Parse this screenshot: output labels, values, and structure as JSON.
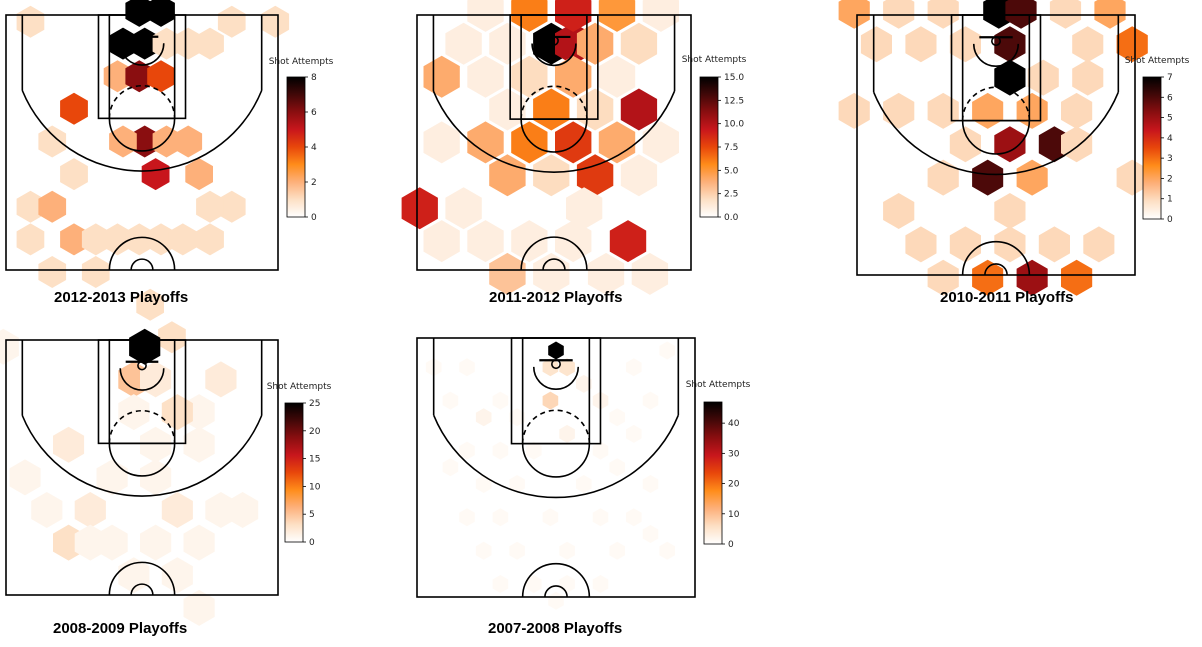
{
  "colorbar_title": "Shot Attempts",
  "colormap": [
    "#ffffff",
    "#fde0c5",
    "#fdb07a",
    "#ff8c1a",
    "#e8470b",
    "#c8161c",
    "#8a0e10",
    "#420808",
    "#000000"
  ],
  "chart_data": [
    {
      "type": "heatmap",
      "caption": "2012-2013 Playoffs",
      "colorbar_label": "Shot Attempts",
      "vmin": 0,
      "vmax": 8,
      "ticks": [
        "0",
        "2",
        "4",
        "6",
        "8"
      ],
      "bins": [
        {
          "x": -205,
          "y": 410,
          "v": 1
        },
        {
          "x": -5,
          "y": 430,
          "v": 8
        },
        {
          "x": 35,
          "y": 430,
          "v": 8
        },
        {
          "x": -35,
          "y": 370,
          "v": 8
        },
        {
          "x": 5,
          "y": 370,
          "v": 8
        },
        {
          "x": 45,
          "y": 370,
          "v": 1
        },
        {
          "x": 85,
          "y": 370,
          "v": 1
        },
        {
          "x": 125,
          "y": 370,
          "v": 1
        },
        {
          "x": 245,
          "y": 410,
          "v": 1
        },
        {
          "x": 165,
          "y": 410,
          "v": 1
        },
        {
          "x": -45,
          "y": 310,
          "v": 2
        },
        {
          "x": -5,
          "y": 310,
          "v": 6
        },
        {
          "x": 35,
          "y": 310,
          "v": 4
        },
        {
          "x": -125,
          "y": 250,
          "v": 4
        },
        {
          "x": 5,
          "y": 190,
          "v": 6
        },
        {
          "x": -35,
          "y": 190,
          "v": 2
        },
        {
          "x": 45,
          "y": 190,
          "v": 2
        },
        {
          "x": 85,
          "y": 190,
          "v": 2
        },
        {
          "x": 25,
          "y": 130,
          "v": 5
        },
        {
          "x": 105,
          "y": 130,
          "v": 2
        },
        {
          "x": -165,
          "y": 190,
          "v": 1
        },
        {
          "x": -125,
          "y": 130,
          "v": 1
        },
        {
          "x": -205,
          "y": 70,
          "v": 1
        },
        {
          "x": -165,
          "y": 70,
          "v": 2
        },
        {
          "x": -125,
          "y": 10,
          "v": 2
        },
        {
          "x": -85,
          "y": 10,
          "v": 1
        },
        {
          "x": -45,
          "y": 10,
          "v": 1
        },
        {
          "x": -5,
          "y": 10,
          "v": 1
        },
        {
          "x": 35,
          "y": 10,
          "v": 1
        },
        {
          "x": 75,
          "y": 10,
          "v": 1
        },
        {
          "x": 165,
          "y": 70,
          "v": 1
        },
        {
          "x": 125,
          "y": 70,
          "v": 1
        },
        {
          "x": -165,
          "y": -50,
          "v": 1
        },
        {
          "x": -85,
          "y": -50,
          "v": 1
        },
        {
          "x": 15,
          "y": -110,
          "v": 1
        },
        {
          "x": 55,
          "y": -170,
          "v": 1
        },
        {
          "x": -205,
          "y": 10,
          "v": 1
        },
        {
          "x": 125,
          "y": 10,
          "v": 1
        }
      ]
    },
    {
      "type": "heatmap",
      "caption": "2011-2012 Playoffs",
      "colorbar_label": "Shot Attempts",
      "vmin": 0,
      "vmax": 15,
      "ticks": [
        "0.0",
        "2.5",
        "5.0",
        "7.5",
        "10.0",
        "12.5",
        "15.0"
      ],
      "bins": [
        {
          "x": -5,
          "y": 370,
          "v": 15
        },
        {
          "x": 35,
          "y": 370,
          "v": 10
        },
        {
          "x": -45,
          "y": 430,
          "v": 6
        },
        {
          "x": 35,
          "y": 430,
          "v": 9
        },
        {
          "x": 115,
          "y": 430,
          "v": 5
        },
        {
          "x": -125,
          "y": 430,
          "v": 1
        },
        {
          "x": 75,
          "y": 370,
          "v": 4
        },
        {
          "x": 155,
          "y": 370,
          "v": 2
        },
        {
          "x": 195,
          "y": 430,
          "v": 1
        },
        {
          "x": -165,
          "y": 370,
          "v": 1
        },
        {
          "x": -85,
          "y": 370,
          "v": 1
        },
        {
          "x": -205,
          "y": 310,
          "v": 4
        },
        {
          "x": -125,
          "y": 310,
          "v": 1
        },
        {
          "x": -45,
          "y": 310,
          "v": 2
        },
        {
          "x": 35,
          "y": 310,
          "v": 4
        },
        {
          "x": 115,
          "y": 310,
          "v": 1
        },
        {
          "x": 155,
          "y": 250,
          "v": 10
        },
        {
          "x": -85,
          "y": 250,
          "v": 1
        },
        {
          "x": -5,
          "y": 250,
          "v": 6
        },
        {
          "x": 75,
          "y": 250,
          "v": 2
        },
        {
          "x": -45,
          "y": 190,
          "v": 6
        },
        {
          "x": 35,
          "y": 190,
          "v": 8
        },
        {
          "x": 115,
          "y": 190,
          "v": 4
        },
        {
          "x": -125,
          "y": 190,
          "v": 4
        },
        {
          "x": -205,
          "y": 190,
          "v": 1
        },
        {
          "x": -85,
          "y": 130,
          "v": 4
        },
        {
          "x": -5,
          "y": 130,
          "v": 2
        },
        {
          "x": 75,
          "y": 130,
          "v": 8
        },
        {
          "x": 195,
          "y": 190,
          "v": 1
        },
        {
          "x": -245,
          "y": 70,
          "v": 9
        },
        {
          "x": -165,
          "y": 70,
          "v": 1
        },
        {
          "x": 155,
          "y": 130,
          "v": 1
        },
        {
          "x": 135,
          "y": 10,
          "v": 9
        },
        {
          "x": -125,
          "y": 10,
          "v": 1
        },
        {
          "x": -45,
          "y": 10,
          "v": 1
        },
        {
          "x": 35,
          "y": 10,
          "v": 1
        },
        {
          "x": -85,
          "y": -50,
          "v": 3
        },
        {
          "x": -5,
          "y": -50,
          "v": 1
        },
        {
          "x": 175,
          "y": -50,
          "v": 1
        },
        {
          "x": 95,
          "y": -50,
          "v": 1
        },
        {
          "x": -205,
          "y": 10,
          "v": 1
        },
        {
          "x": 55,
          "y": 70,
          "v": 1
        }
      ]
    },
    {
      "type": "heatmap",
      "caption": "2010-2011 Playoffs",
      "colorbar_label": "Shot Attempts",
      "vmin": 0,
      "vmax": 7,
      "ticks": [
        "0",
        "1",
        "2",
        "3",
        "4",
        "5",
        "6",
        "7"
      ],
      "bins": [
        {
          "x": 5,
          "y": 430,
          "v": 7
        },
        {
          "x": 45,
          "y": 430,
          "v": 6
        },
        {
          "x": 25,
          "y": 370,
          "v": 6
        },
        {
          "x": 25,
          "y": 310,
          "v": 7
        },
        {
          "x": -255,
          "y": 430,
          "v": 2
        },
        {
          "x": -175,
          "y": 430,
          "v": 1
        },
        {
          "x": -95,
          "y": 430,
          "v": 1
        },
        {
          "x": 125,
          "y": 430,
          "v": 1
        },
        {
          "x": 205,
          "y": 430,
          "v": 2
        },
        {
          "x": 245,
          "y": 370,
          "v": 3
        },
        {
          "x": 165,
          "y": 370,
          "v": 1
        },
        {
          "x": -135,
          "y": 370,
          "v": 1
        },
        {
          "x": -215,
          "y": 370,
          "v": 1
        },
        {
          "x": -55,
          "y": 370,
          "v": 1
        },
        {
          "x": 85,
          "y": 310,
          "v": 1
        },
        {
          "x": 165,
          "y": 310,
          "v": 1
        },
        {
          "x": -175,
          "y": 250,
          "v": 1
        },
        {
          "x": -95,
          "y": 250,
          "v": 1
        },
        {
          "x": -15,
          "y": 250,
          "v": 2
        },
        {
          "x": 65,
          "y": 250,
          "v": 2
        },
        {
          "x": 145,
          "y": 250,
          "v": 1
        },
        {
          "x": -255,
          "y": 250,
          "v": 1
        },
        {
          "x": -55,
          "y": 190,
          "v": 1
        },
        {
          "x": 25,
          "y": 190,
          "v": 5
        },
        {
          "x": 105,
          "y": 190,
          "v": 6
        },
        {
          "x": -15,
          "y": 130,
          "v": 6
        },
        {
          "x": 65,
          "y": 130,
          "v": 2
        },
        {
          "x": 145,
          "y": 190,
          "v": 1
        },
        {
          "x": 245,
          "y": 130,
          "v": 1
        },
        {
          "x": -95,
          "y": 130,
          "v": 1
        },
        {
          "x": -175,
          "y": 70,
          "v": 1
        },
        {
          "x": 25,
          "y": 70,
          "v": 1
        },
        {
          "x": -135,
          "y": 10,
          "v": 1
        },
        {
          "x": 185,
          "y": 10,
          "v": 1
        },
        {
          "x": 105,
          "y": 10,
          "v": 1
        },
        {
          "x": -55,
          "y": 10,
          "v": 1
        },
        {
          "x": -95,
          "y": -50,
          "v": 1
        },
        {
          "x": -15,
          "y": -50,
          "v": 3
        },
        {
          "x": 65,
          "y": -50,
          "v": 5
        },
        {
          "x": 145,
          "y": -50,
          "v": 3
        },
        {
          "x": 25,
          "y": 10,
          "v": 1
        }
      ]
    },
    {
      "type": "heatmap",
      "caption": "2008-2009 Playoffs",
      "colorbar_label": "Shot Attempts",
      "vmin": 0,
      "vmax": 25,
      "ticks": [
        "0",
        "5",
        "10",
        "15",
        "20",
        "25"
      ],
      "bins": [
        {
          "x": 5,
          "y": 410,
          "v": 25
        },
        {
          "x": -15,
          "y": 350,
          "v": 5
        },
        {
          "x": 25,
          "y": 350,
          "v": 2
        },
        {
          "x": -255,
          "y": 410,
          "v": 1
        },
        {
          "x": 145,
          "y": 350,
          "v": 2
        },
        {
          "x": 105,
          "y": 290,
          "v": 1
        },
        {
          "x": 65,
          "y": 290,
          "v": 3
        },
        {
          "x": -15,
          "y": 290,
          "v": 1
        },
        {
          "x": 25,
          "y": 230,
          "v": 1
        },
        {
          "x": 105,
          "y": 230,
          "v": 1
        },
        {
          "x": -135,
          "y": 230,
          "v": 2
        },
        {
          "x": -55,
          "y": 170,
          "v": 1
        },
        {
          "x": 25,
          "y": 170,
          "v": 1
        },
        {
          "x": -215,
          "y": 170,
          "v": 1
        },
        {
          "x": -175,
          "y": 110,
          "v": 1
        },
        {
          "x": -95,
          "y": 110,
          "v": 2
        },
        {
          "x": 65,
          "y": 110,
          "v": 2
        },
        {
          "x": 145,
          "y": 110,
          "v": 1
        },
        {
          "x": -135,
          "y": 50,
          "v": 3
        },
        {
          "x": -55,
          "y": 50,
          "v": 1
        },
        {
          "x": 25,
          "y": 50,
          "v": 1
        },
        {
          "x": 105,
          "y": 50,
          "v": 1
        },
        {
          "x": 185,
          "y": 110,
          "v": 1
        },
        {
          "x": -15,
          "y": -10,
          "v": 1
        },
        {
          "x": 105,
          "y": -70,
          "v": 1
        },
        {
          "x": 65,
          "y": -10,
          "v": 1
        },
        {
          "x": -95,
          "y": 50,
          "v": 1
        }
      ]
    },
    {
      "type": "heatmap",
      "caption": "2007-2008 Playoffs",
      "colorbar_label": "Shot Attempts",
      "vmin": 0,
      "vmax": 47,
      "ticks": [
        "0",
        "10",
        "20",
        "30",
        "40"
      ],
      "bins": [
        {
          "x": 0,
          "y": 400,
          "v": 47
        },
        {
          "x": -10,
          "y": 370,
          "v": 5
        },
        {
          "x": 20,
          "y": 370,
          "v": 5
        },
        {
          "x": 50,
          "y": 340,
          "v": 2
        },
        {
          "x": -10,
          "y": 310,
          "v": 7
        },
        {
          "x": 80,
          "y": 310,
          "v": 2
        },
        {
          "x": -100,
          "y": 310,
          "v": 1
        },
        {
          "x": -160,
          "y": 370,
          "v": 1
        },
        {
          "x": -220,
          "y": 370,
          "v": 1
        },
        {
          "x": -190,
          "y": 310,
          "v": 1
        },
        {
          "x": 140,
          "y": 370,
          "v": 1
        },
        {
          "x": 200,
          "y": 400,
          "v": 1
        },
        {
          "x": -130,
          "y": 280,
          "v": 2
        },
        {
          "x": -70,
          "y": 280,
          "v": 1
        },
        {
          "x": 20,
          "y": 250,
          "v": 2
        },
        {
          "x": 110,
          "y": 280,
          "v": 1
        },
        {
          "x": 170,
          "y": 310,
          "v": 1
        },
        {
          "x": -160,
          "y": 220,
          "v": 1
        },
        {
          "x": -100,
          "y": 220,
          "v": 1
        },
        {
          "x": -40,
          "y": 220,
          "v": 1
        },
        {
          "x": 80,
          "y": 220,
          "v": 1
        },
        {
          "x": 140,
          "y": 250,
          "v": 1
        },
        {
          "x": -190,
          "y": 190,
          "v": 1
        },
        {
          "x": -130,
          "y": 160,
          "v": 1
        },
        {
          "x": -70,
          "y": 160,
          "v": 1
        },
        {
          "x": 50,
          "y": 160,
          "v": 1
        },
        {
          "x": 110,
          "y": 190,
          "v": 1
        },
        {
          "x": 170,
          "y": 160,
          "v": 1
        },
        {
          "x": -160,
          "y": 100,
          "v": 1
        },
        {
          "x": -100,
          "y": 100,
          "v": 1
        },
        {
          "x": -10,
          "y": 100,
          "v": 1
        },
        {
          "x": 80,
          "y": 100,
          "v": 1
        },
        {
          "x": 140,
          "y": 100,
          "v": 1
        },
        {
          "x": -130,
          "y": 40,
          "v": 1
        },
        {
          "x": -70,
          "y": 40,
          "v": 1
        },
        {
          "x": 20,
          "y": 40,
          "v": 1
        },
        {
          "x": 110,
          "y": 40,
          "v": 1
        },
        {
          "x": 170,
          "y": 70,
          "v": 1
        },
        {
          "x": -100,
          "y": -20,
          "v": 1
        },
        {
          "x": -40,
          "y": -20,
          "v": 1
        },
        {
          "x": 20,
          "y": -20,
          "v": 1
        },
        {
          "x": 80,
          "y": -20,
          "v": 1
        },
        {
          "x": 0,
          "y": -50,
          "v": 1
        },
        {
          "x": 200,
          "y": 40,
          "v": 1
        }
      ]
    }
  ]
}
